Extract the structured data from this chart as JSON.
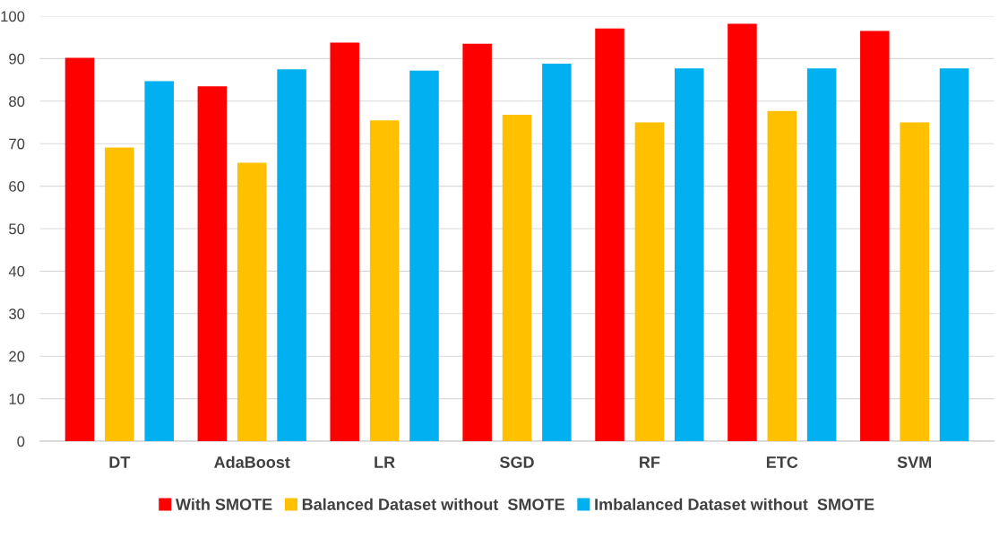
{
  "chart_data": {
    "type": "bar",
    "categories": [
      "DT",
      "AdaBoost",
      "LR",
      "SGD",
      "RF",
      "ETC",
      "SVM"
    ],
    "series": [
      {
        "name": "With SMOTE",
        "color": "#ff0000",
        "values": [
          90.2,
          83.5,
          93.8,
          93.5,
          97.1,
          98.2,
          96.5
        ]
      },
      {
        "name": "Balanced Dataset without  SMOTE",
        "color": "#ffc000",
        "values": [
          69.1,
          65.5,
          75.5,
          76.8,
          75.0,
          77.7,
          75.0
        ]
      },
      {
        "name": "Imbalanced Dataset without  SMOTE",
        "color": "#00b0f0",
        "values": [
          84.7,
          87.5,
          87.2,
          88.8,
          87.7,
          87.7,
          87.7
        ]
      }
    ],
    "ylim": [
      0,
      100
    ],
    "yticks": [
      0,
      10,
      20,
      30,
      40,
      50,
      60,
      70,
      80,
      90,
      100
    ],
    "grid": "y",
    "legend": "bottom"
  }
}
